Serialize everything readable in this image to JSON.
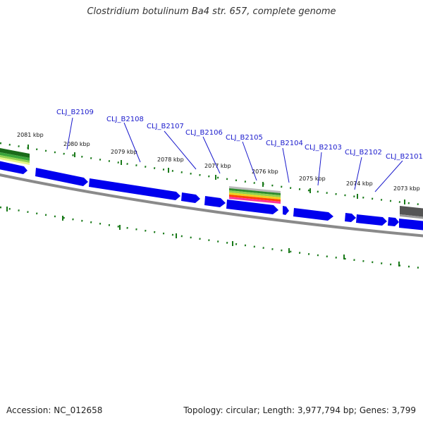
{
  "title": "Clostridium botulinum Ba4 str. 657, complete genome",
  "footer": {
    "accession": "Accession: NC_012658",
    "stats": "Topology: circular; Length: 3,977,794 bp; Genes: 3,799"
  },
  "kbp_labels": [
    "2081 kbp",
    "2080 kbp",
    "2079 kbp",
    "2078 kbp",
    "2077 kbp",
    "2076 kbp",
    "2075 kbp",
    "2074 kbp",
    "2073 kbp"
  ],
  "gene_labels": [
    "CLJ_B2109",
    "CLJ_B2108",
    "CLJ_B2107",
    "CLJ_B2106",
    "CLJ_B2105",
    "CLJ_B2104",
    "CLJ_B2103",
    "CLJ_B2102",
    "CLJ_B2101"
  ],
  "colors": {
    "gene": "#0000ee",
    "gene_dark": "#00008a",
    "backbone": "#777777",
    "tick": "#1a7a1a",
    "label": "#1a1acc"
  }
}
